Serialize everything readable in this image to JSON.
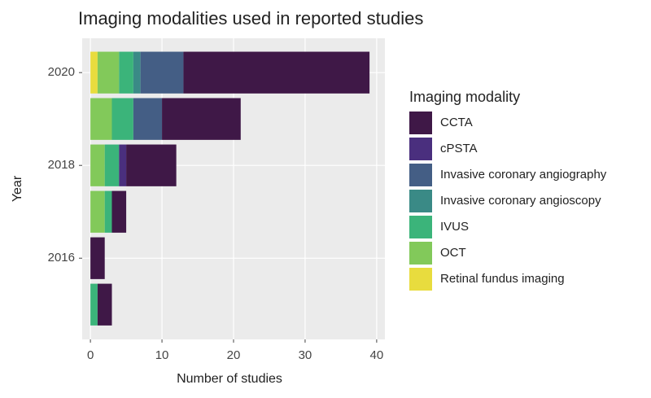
{
  "chart_data": {
    "type": "stacked-barh",
    "title": "Imaging modalities used in reported studies",
    "x_label": "Number of studies",
    "y_label": "Year",
    "legend_title": "Imaging modality",
    "y": [
      2015,
      2016,
      2017,
      2018,
      2019,
      2020
    ],
    "series": [
      {
        "name": "CCTA",
        "color": "#3f1847",
        "values": [
          2,
          2,
          2,
          7,
          11,
          26
        ]
      },
      {
        "name": "cPSTA",
        "color": "#4a2f7e",
        "values": [
          0,
          0,
          0,
          1,
          0,
          0
        ]
      },
      {
        "name": "Invasive coronary angiography",
        "color": "#445e85",
        "values": [
          0,
          0,
          0,
          0,
          4,
          6
        ]
      },
      {
        "name": "Invasive coronary angioscopy",
        "color": "#3a8a86",
        "values": [
          0,
          0,
          0,
          0,
          0,
          1
        ]
      },
      {
        "name": "IVUS",
        "color": "#3bb47a",
        "values": [
          1,
          0,
          1,
          2,
          3,
          2
        ]
      },
      {
        "name": "OCT",
        "color": "#82c95a",
        "values": [
          0,
          0,
          2,
          2,
          3,
          3
        ]
      },
      {
        "name": "Retinal fundus imaging",
        "color": "#e8dc3e",
        "values": [
          0,
          0,
          0,
          0,
          0,
          1
        ]
      }
    ],
    "xlim": [
      -1.15,
      41.15
    ],
    "xticks": [
      0,
      10,
      20,
      30,
      40
    ],
    "ylim": [
      2014.25,
      2020.74
    ],
    "yticks": [
      2016,
      2018,
      2020
    ],
    "grid": true,
    "legend": "right"
  }
}
